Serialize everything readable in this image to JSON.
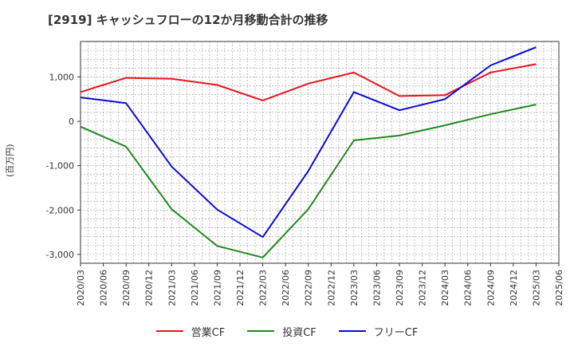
{
  "title": "[2919]  キャッシュフローの12か月移動合計の推移",
  "ylabel": "(百万円)",
  "chart_data": {
    "type": "line",
    "title": "[2919]  キャッシュフローの12か月移動合計の推移",
    "xlabel": "",
    "ylabel": "(百万円)",
    "ylim": [
      -3200,
      1800
    ],
    "yticks": [
      1000,
      0,
      -1000,
      -2000,
      -3000
    ],
    "ytick_labels": [
      "1,000",
      "0",
      "-1,000",
      "-2,000",
      "-3,000"
    ],
    "x_tick_labels": [
      "2020/03",
      "2020/06",
      "2020/09",
      "2020/12",
      "2021/03",
      "2021/06",
      "2021/09",
      "2021/12",
      "2022/03",
      "2022/06",
      "2022/09",
      "2022/12",
      "2023/03",
      "2023/06",
      "2023/09",
      "2023/12",
      "2024/03",
      "2024/06",
      "2024/09",
      "2024/12",
      "2025/03",
      "2025/06"
    ],
    "legend_position": "bottom",
    "grid": true,
    "series": [
      {
        "name": "営業CF",
        "color": "#e8141c",
        "x": [
          "2020/03",
          "2020/09",
          "2021/03",
          "2021/09",
          "2022/03",
          "2022/09",
          "2023/03",
          "2023/09",
          "2024/03",
          "2024/09",
          "2025/03"
        ],
        "values": [
          660,
          980,
          960,
          820,
          470,
          850,
          1100,
          570,
          590,
          1100,
          1290
        ]
      },
      {
        "name": "投資CF",
        "color": "#1e8a1e",
        "x": [
          "2020/03",
          "2020/09",
          "2021/03",
          "2021/09",
          "2022/03",
          "2022/09",
          "2023/03",
          "2023/09",
          "2024/03",
          "2024/09",
          "2025/03"
        ],
        "values": [
          -120,
          -570,
          -1980,
          -2810,
          -3070,
          -1980,
          -430,
          -320,
          -90,
          160,
          380
        ]
      },
      {
        "name": "フリーCF",
        "color": "#0a0ad8",
        "x": [
          "2020/03",
          "2020/09",
          "2021/03",
          "2021/09",
          "2022/03",
          "2022/09",
          "2023/03",
          "2023/09",
          "2024/03",
          "2024/09",
          "2025/03"
        ],
        "values": [
          540,
          410,
          -1020,
          -1990,
          -2610,
          -1120,
          660,
          250,
          500,
          1260,
          1670
        ]
      }
    ]
  }
}
